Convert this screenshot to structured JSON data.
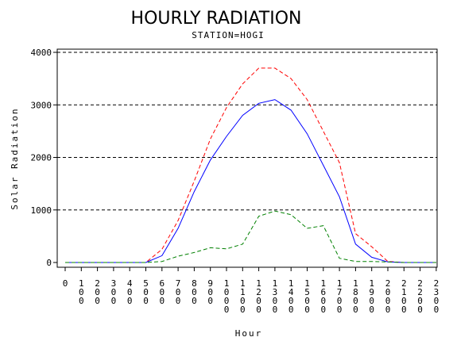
{
  "chart_data": {
    "type": "line",
    "title": "HOURLY RADIATION",
    "subtitle": "STATION=HOGI",
    "xlabel": "Hour",
    "ylabel": "Solar Radiation",
    "x": [
      "0",
      "100",
      "200",
      "300",
      "400",
      "500",
      "600",
      "700",
      "800",
      "900",
      "1000",
      "1100",
      "1200",
      "1300",
      "1400",
      "1500",
      "1600",
      "1700",
      "1800",
      "1900",
      "2000",
      "2100",
      "2200",
      "2300"
    ],
    "ylim": [
      0,
      4000
    ],
    "yticks": [
      0,
      1000,
      2000,
      3000,
      4000
    ],
    "grid": "horizontal dashed",
    "series": [
      {
        "color": "#ff0000",
        "dash": "dashed",
        "values": [
          0,
          0,
          0,
          0,
          0,
          0,
          250,
          800,
          1550,
          2350,
          2950,
          3400,
          3700,
          3700,
          3500,
          3100,
          2500,
          1900,
          550,
          300,
          20,
          0,
          0,
          0
        ]
      },
      {
        "color": "#0000ff",
        "dash": "solid",
        "values": [
          0,
          0,
          0,
          0,
          0,
          0,
          130,
          650,
          1350,
          1950,
          2400,
          2800,
          3030,
          3100,
          2900,
          2450,
          1850,
          1250,
          350,
          100,
          10,
          0,
          0,
          0
        ]
      },
      {
        "color": "#008000",
        "dash": "dashed",
        "values": [
          0,
          0,
          0,
          0,
          0,
          0,
          20,
          120,
          190,
          280,
          260,
          350,
          880,
          980,
          910,
          650,
          700,
          80,
          20,
          20,
          10,
          0,
          0,
          0
        ]
      }
    ]
  }
}
